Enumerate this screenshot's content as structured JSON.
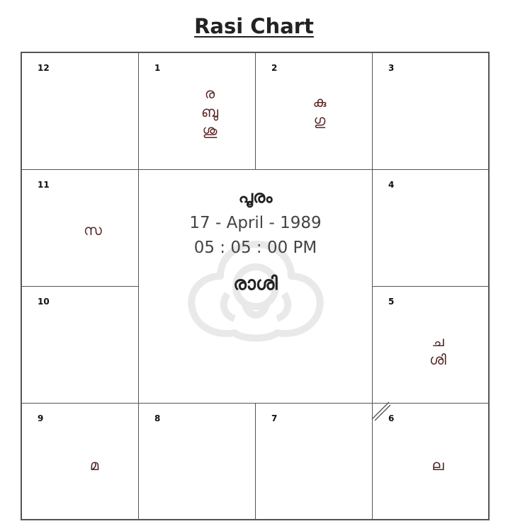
{
  "title": "Rasi Chart",
  "center": {
    "nakshatra": "പൂരം",
    "date": "17 - April - 1989",
    "time": "05 : 05 : 00 PM",
    "label": "രാശി"
  },
  "houses": {
    "h12": {
      "num": "12",
      "planets": []
    },
    "h1": {
      "num": "1",
      "planets": [
        "ര",
        "ബു",
        "ശു"
      ]
    },
    "h2": {
      "num": "2",
      "planets": [
        "കു",
        "ഗു"
      ]
    },
    "h3": {
      "num": "3",
      "planets": []
    },
    "h11": {
      "num": "11",
      "planets": [
        "സ"
      ]
    },
    "h4": {
      "num": "4",
      "planets": []
    },
    "h10": {
      "num": "10",
      "planets": []
    },
    "h5": {
      "num": "5",
      "planets": [
        "ച",
        "ശി"
      ]
    },
    "h9": {
      "num": "9",
      "planets": [
        "മ"
      ]
    },
    "h8": {
      "num": "8",
      "planets": []
    },
    "h7": {
      "num": "7",
      "planets": []
    },
    "h6": {
      "num": "6",
      "planets": [
        "ല"
      ]
    }
  },
  "colors": {
    "planet_text": "#5a2626",
    "grid_line": "#555555"
  }
}
